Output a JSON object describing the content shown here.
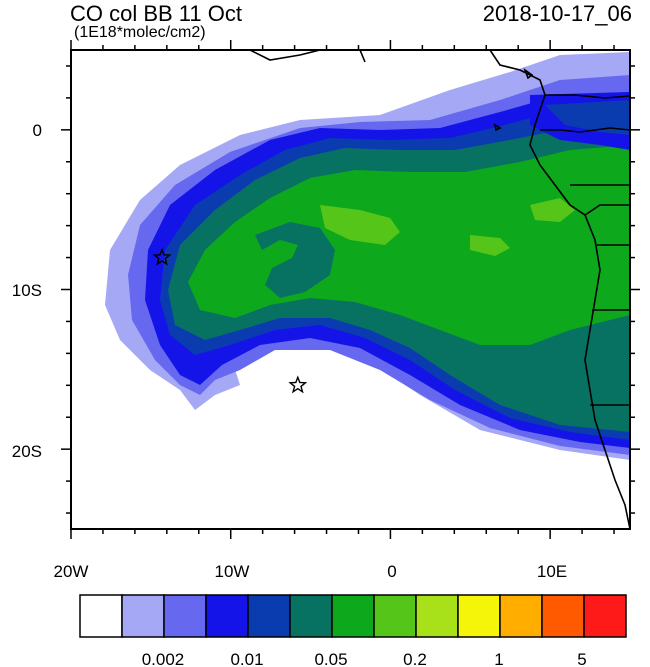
{
  "header": {
    "title": "CO col BB 11 Oct",
    "units": "(1E18*molec/cm2)",
    "datetime": "2018-10-17_06"
  },
  "axes": {
    "lon_ticks": [
      "20W",
      "10W",
      "0",
      "10E"
    ],
    "lat_ticks": [
      "0",
      "10S",
      "20S"
    ]
  },
  "colorbar": {
    "colors": [
      "#ffffff",
      "#a5a8f5",
      "#6668ef",
      "#1414e8",
      "#0a3cb0",
      "#077262",
      "#0ea81c",
      "#56c51a",
      "#a8e01a",
      "#f5f50a",
      "#ffae00",
      "#ff5a00",
      "#ff1a1a"
    ],
    "labels": [
      "0.002",
      "0.01",
      "0.05",
      "0.2",
      "1",
      "5"
    ]
  },
  "markers": [
    {
      "name": "star-marker-west",
      "lon": -14.3,
      "lat": -8.0
    },
    {
      "name": "star-marker-south",
      "lon": -5.8,
      "lat": -16.0
    }
  ]
}
